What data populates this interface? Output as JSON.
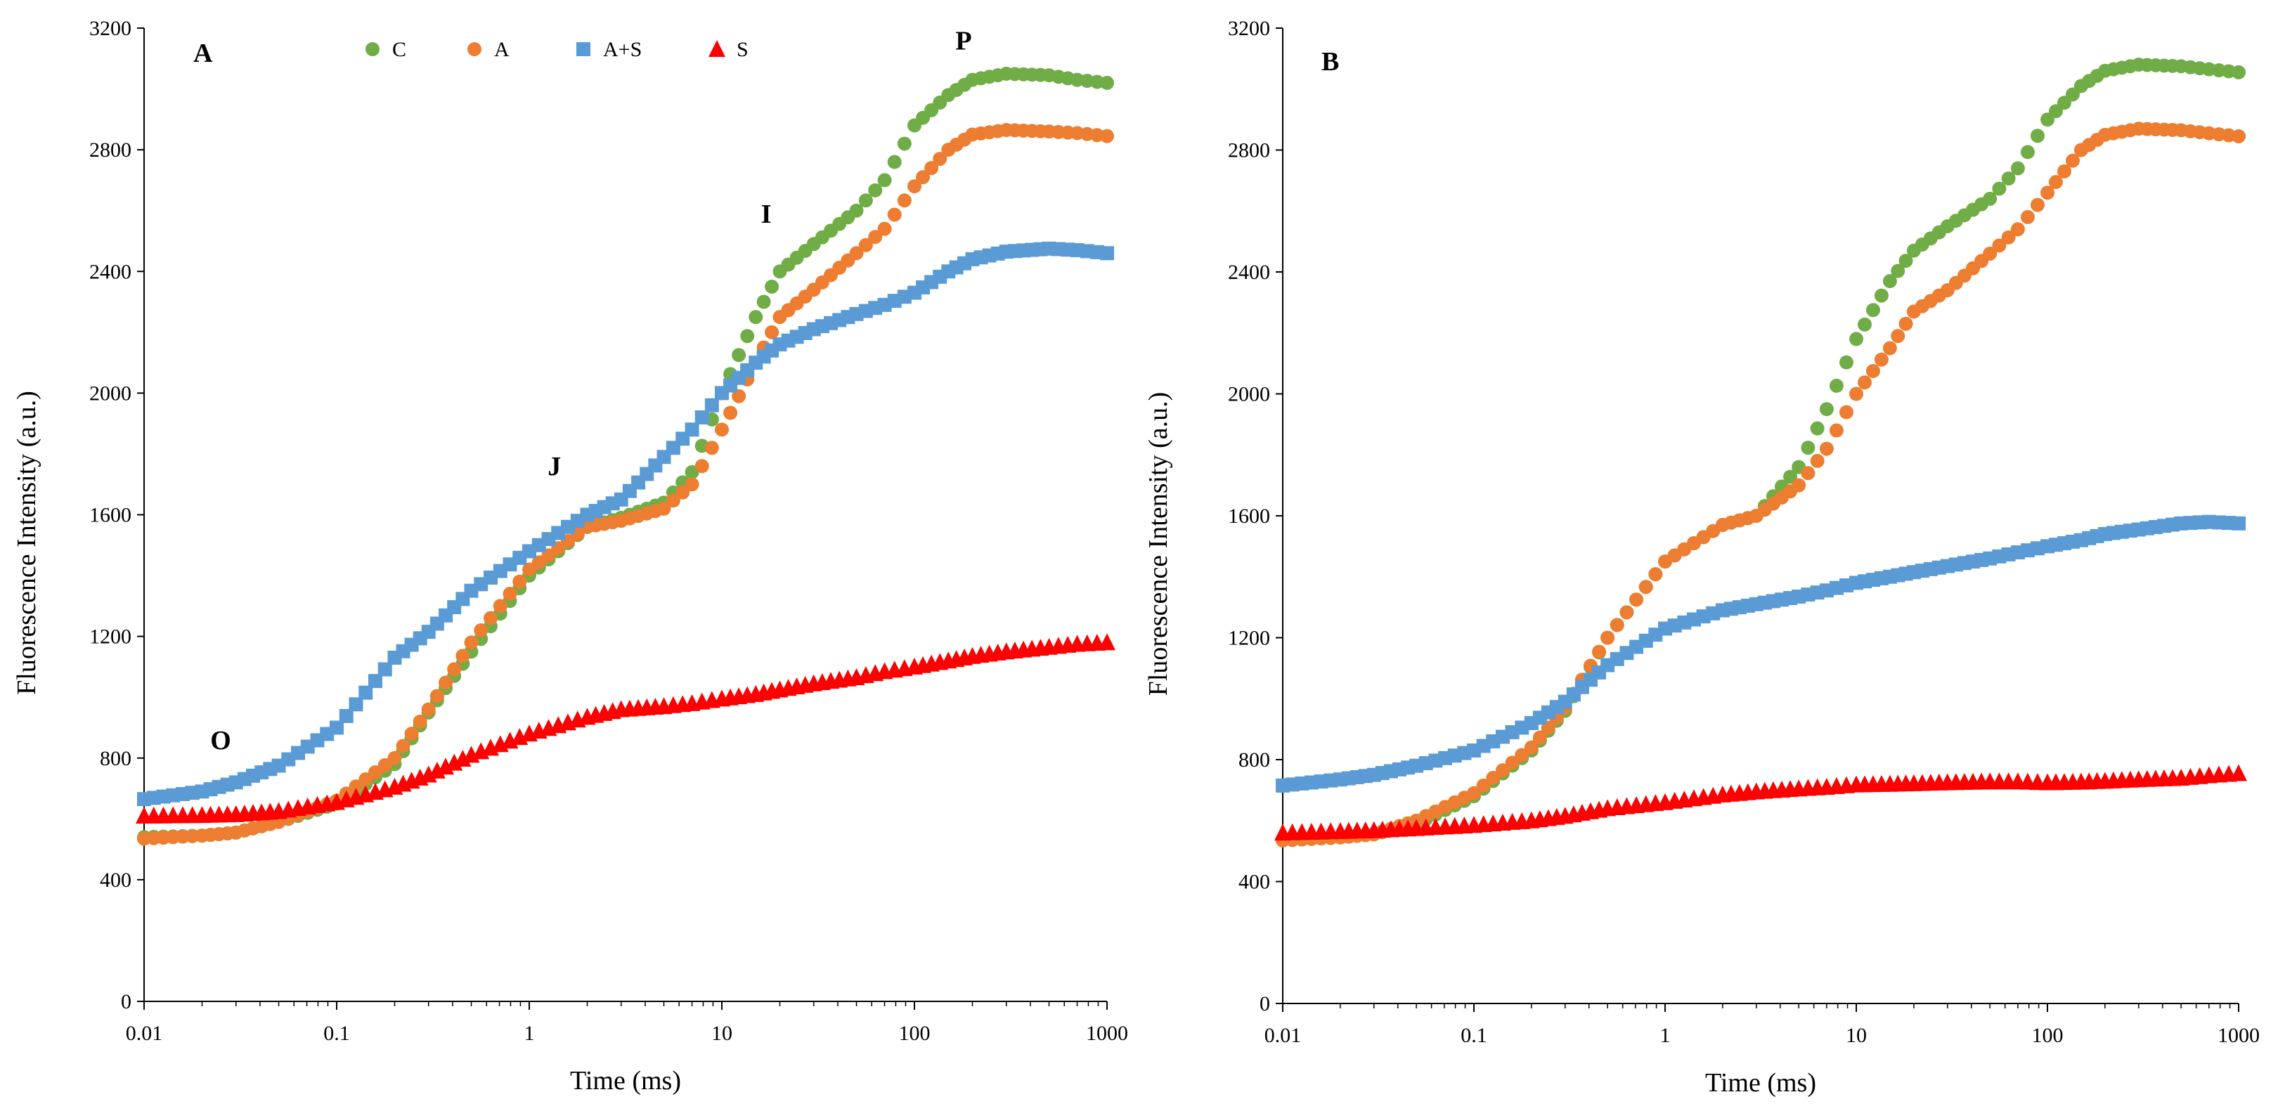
{
  "chart_data": [
    {
      "panel": "A",
      "type": "scatter",
      "x_scale": "log",
      "xlabel": "Time (ms)",
      "ylabel": "Fluorescence Intensity  (a.u.)",
      "xlim": [
        0.01,
        1000
      ],
      "ylim": [
        0,
        3200
      ],
      "x_ticks": [
        0.01,
        0.1,
        1,
        10,
        100,
        1000
      ],
      "x_tick_labels": [
        "0.01",
        "0.1",
        "1",
        "10",
        "100",
        "1000"
      ],
      "y_ticks": [
        0,
        400,
        800,
        1200,
        1600,
        2000,
        2400,
        2800,
        3200
      ],
      "y_tick_labels": [
        "0",
        "400",
        "800",
        "1200",
        "1600",
        "2000",
        "2400",
        "2800",
        "3200"
      ],
      "grid": false,
      "legend_placement": "top",
      "series": [
        {
          "name": "C",
          "color": "#70AD47",
          "marker": "circle",
          "points": [
            [
              0.01,
              540
            ],
            [
              0.02,
              545
            ],
            [
              0.03,
              555
            ],
            [
              0.05,
              590
            ],
            [
              0.1,
              650
            ],
            [
              0.2,
              780
            ],
            [
              0.3,
              950
            ],
            [
              0.5,
              1150
            ],
            [
              1,
              1400
            ],
            [
              2,
              1560
            ],
            [
              3,
              1590
            ],
            [
              5,
              1640
            ],
            [
              7,
              1740
            ],
            [
              10,
              2000
            ],
            [
              15,
              2250
            ],
            [
              20,
              2400
            ],
            [
              30,
              2490
            ],
            [
              50,
              2600
            ],
            [
              70,
              2700
            ],
            [
              100,
              2880
            ],
            [
              150,
              2980
            ],
            [
              200,
              3030
            ],
            [
              300,
              3050
            ],
            [
              500,
              3045
            ],
            [
              700,
              3030
            ],
            [
              1000,
              3020
            ]
          ]
        },
        {
          "name": "A",
          "color": "#ED7D31",
          "marker": "circle",
          "points": [
            [
              0.01,
              535
            ],
            [
              0.02,
              545
            ],
            [
              0.03,
              555
            ],
            [
              0.05,
              590
            ],
            [
              0.1,
              660
            ],
            [
              0.2,
              800
            ],
            [
              0.3,
              960
            ],
            [
              0.5,
              1180
            ],
            [
              1,
              1420
            ],
            [
              2,
              1560
            ],
            [
              3,
              1580
            ],
            [
              5,
              1620
            ],
            [
              7,
              1700
            ],
            [
              10,
              1880
            ],
            [
              15,
              2100
            ],
            [
              20,
              2250
            ],
            [
              30,
              2340
            ],
            [
              50,
              2460
            ],
            [
              70,
              2540
            ],
            [
              100,
              2680
            ],
            [
              150,
              2800
            ],
            [
              200,
              2850
            ],
            [
              300,
              2865
            ],
            [
              500,
              2860
            ],
            [
              700,
              2855
            ],
            [
              1000,
              2845
            ]
          ]
        },
        {
          "name": "A+S",
          "color": "#5B9BD5",
          "marker": "square",
          "points": [
            [
              0.01,
              665
            ],
            [
              0.02,
              690
            ],
            [
              0.03,
              720
            ],
            [
              0.05,
              775
            ],
            [
              0.1,
              900
            ],
            [
              0.2,
              1130
            ],
            [
              0.3,
              1215
            ],
            [
              0.5,
              1350
            ],
            [
              1,
              1480
            ],
            [
              2,
              1600
            ],
            [
              3,
              1650
            ],
            [
              5,
              1790
            ],
            [
              7,
              1880
            ],
            [
              10,
              2000
            ],
            [
              15,
              2100
            ],
            [
              20,
              2160
            ],
            [
              30,
              2210
            ],
            [
              50,
              2260
            ],
            [
              70,
              2290
            ],
            [
              100,
              2330
            ],
            [
              150,
              2400
            ],
            [
              200,
              2440
            ],
            [
              300,
              2465
            ],
            [
              500,
              2475
            ],
            [
              700,
              2470
            ],
            [
              1000,
              2460
            ]
          ]
        },
        {
          "name": "S",
          "color": "#FF0000",
          "marker": "triangle",
          "points": [
            [
              0.01,
              610
            ],
            [
              0.02,
              612
            ],
            [
              0.03,
              615
            ],
            [
              0.05,
              625
            ],
            [
              0.1,
              655
            ],
            [
              0.2,
              705
            ],
            [
              0.3,
              745
            ],
            [
              0.5,
              810
            ],
            [
              1,
              880
            ],
            [
              2,
              935
            ],
            [
              3,
              960
            ],
            [
              5,
              970
            ],
            [
              7,
              980
            ],
            [
              10,
              995
            ],
            [
              15,
              1010
            ],
            [
              20,
              1025
            ],
            [
              30,
              1045
            ],
            [
              50,
              1065
            ],
            [
              70,
              1085
            ],
            [
              100,
              1100
            ],
            [
              150,
              1120
            ],
            [
              200,
              1135
            ],
            [
              300,
              1150
            ],
            [
              500,
              1165
            ],
            [
              700,
              1175
            ],
            [
              1000,
              1180
            ]
          ]
        }
      ],
      "annotations": [
        {
          "text": "O",
          "x": 0.025,
          "y": 830
        },
        {
          "text": "J",
          "x": 1.35,
          "y": 1730
        },
        {
          "text": "I",
          "x": 17,
          "y": 2560
        },
        {
          "text": "P",
          "x": 180,
          "y": 3130
        }
      ]
    },
    {
      "panel": "B",
      "type": "scatter",
      "x_scale": "log",
      "xlabel": "Time (ms)",
      "ylabel": "Fluorescence Intensity  (a.u.)",
      "xlim": [
        0.01,
        1000
      ],
      "ylim": [
        0,
        3200
      ],
      "x_ticks": [
        0.01,
        0.1,
        1,
        10,
        100,
        1000
      ],
      "x_tick_labels": [
        "0.01",
        "0.1",
        "1",
        "10",
        "100",
        "1000"
      ],
      "y_ticks": [
        0,
        400,
        800,
        1200,
        1600,
        2000,
        2400,
        2800,
        3200
      ],
      "y_tick_labels": [
        "0",
        "400",
        "800",
        "1200",
        "1600",
        "2000",
        "2400",
        "2800",
        "3200"
      ],
      "grid": false,
      "series": [
        {
          "name": "C",
          "color": "#70AD47",
          "marker": "circle",
          "points": [
            [
              0.01,
              535
            ],
            [
              0.02,
              545
            ],
            [
              0.03,
              555
            ],
            [
              0.05,
              590
            ],
            [
              0.1,
              680
            ],
            [
              0.2,
              830
            ],
            [
              0.3,
              960
            ],
            [
              0.5,
              1200
            ],
            [
              1,
              1450
            ],
            [
              2,
              1570
            ],
            [
              3,
              1600
            ],
            [
              5,
              1760
            ],
            [
              7,
              1950
            ],
            [
              10,
              2180
            ],
            [
              15,
              2370
            ],
            [
              20,
              2470
            ],
            [
              30,
              2550
            ],
            [
              50,
              2640
            ],
            [
              70,
              2740
            ],
            [
              100,
              2900
            ],
            [
              150,
              3010
            ],
            [
              200,
              3060
            ],
            [
              300,
              3080
            ],
            [
              500,
              3075
            ],
            [
              700,
              3065
            ],
            [
              1000,
              3055
            ]
          ]
        },
        {
          "name": "A",
          "color": "#ED7D31",
          "marker": "circle",
          "points": [
            [
              0.01,
              535
            ],
            [
              0.02,
              545
            ],
            [
              0.03,
              555
            ],
            [
              0.05,
              600
            ],
            [
              0.1,
              690
            ],
            [
              0.2,
              840
            ],
            [
              0.3,
              970
            ],
            [
              0.5,
              1200
            ],
            [
              1,
              1450
            ],
            [
              2,
              1570
            ],
            [
              3,
              1600
            ],
            [
              5,
              1700
            ],
            [
              7,
              1820
            ],
            [
              10,
              2000
            ],
            [
              15,
              2150
            ],
            [
              20,
              2270
            ],
            [
              30,
              2340
            ],
            [
              50,
              2460
            ],
            [
              70,
              2540
            ],
            [
              100,
              2660
            ],
            [
              150,
              2800
            ],
            [
              200,
              2850
            ],
            [
              300,
              2870
            ],
            [
              500,
              2865
            ],
            [
              700,
              2855
            ],
            [
              1000,
              2845
            ]
          ]
        },
        {
          "name": "A+S",
          "color": "#5B9BD5",
          "marker": "square",
          "points": [
            [
              0.01,
              715
            ],
            [
              0.02,
              735
            ],
            [
              0.03,
              750
            ],
            [
              0.05,
              780
            ],
            [
              0.1,
              830
            ],
            [
              0.2,
              920
            ],
            [
              0.3,
              990
            ],
            [
              0.5,
              1110
            ],
            [
              1,
              1230
            ],
            [
              2,
              1290
            ],
            [
              3,
              1310
            ],
            [
              5,
              1335
            ],
            [
              7,
              1355
            ],
            [
              10,
              1380
            ],
            [
              15,
              1400
            ],
            [
              20,
              1415
            ],
            [
              30,
              1435
            ],
            [
              50,
              1460
            ],
            [
              70,
              1480
            ],
            [
              100,
              1500
            ],
            [
              150,
              1520
            ],
            [
              200,
              1540
            ],
            [
              300,
              1555
            ],
            [
              500,
              1575
            ],
            [
              700,
              1580
            ],
            [
              1000,
              1575
            ]
          ]
        },
        {
          "name": "S",
          "color": "#FF0000",
          "marker": "triangle",
          "points": [
            [
              0.01,
              560
            ],
            [
              0.02,
              565
            ],
            [
              0.03,
              568
            ],
            [
              0.05,
              575
            ],
            [
              0.1,
              585
            ],
            [
              0.2,
              600
            ],
            [
              0.3,
              615
            ],
            [
              0.5,
              640
            ],
            [
              1,
              660
            ],
            [
              2,
              685
            ],
            [
              3,
              695
            ],
            [
              5,
              705
            ],
            [
              7,
              710
            ],
            [
              10,
              718
            ],
            [
              15,
              720
            ],
            [
              20,
              722
            ],
            [
              30,
              725
            ],
            [
              50,
              728
            ],
            [
              70,
              728
            ],
            [
              100,
              725
            ],
            [
              150,
              727
            ],
            [
              200,
              730
            ],
            [
              300,
              735
            ],
            [
              500,
              740
            ],
            [
              700,
              748
            ],
            [
              1000,
              755
            ]
          ]
        }
      ],
      "annotations": []
    }
  ]
}
